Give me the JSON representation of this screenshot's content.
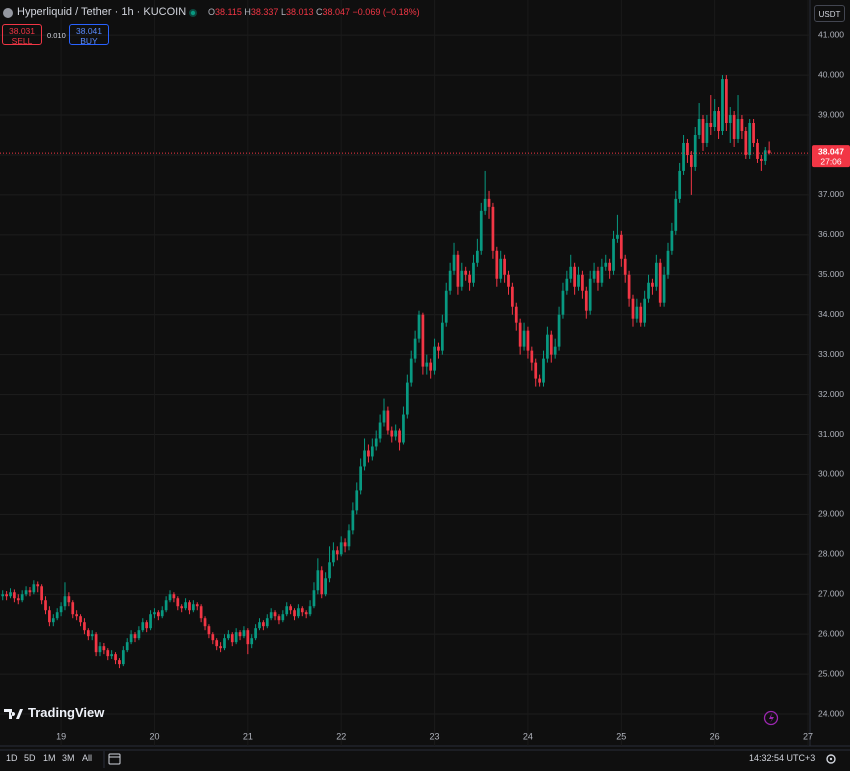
{
  "header": {
    "symbol": "Hyperliquid / Tether · 1h · KUCOIN",
    "ohlc": [
      {
        "key": "O",
        "value": "38.115"
      },
      {
        "key": "H",
        "value": "38.337"
      },
      {
        "key": "L",
        "value": "38.013"
      },
      {
        "key": "C",
        "value": "38.047"
      }
    ],
    "change": "−0.069 (−0.18%)"
  },
  "trade": {
    "sell_price": "38.031",
    "sell_label": "SELL",
    "spread": "0.010",
    "buy_price": "38.041",
    "buy_label": "BUY"
  },
  "currency": "USDT",
  "brand": "TradingView",
  "toolbar": {
    "ranges": [
      "1D",
      "5D",
      "1M",
      "3M",
      "All"
    ],
    "clock": "14:32:54 UTC+3"
  },
  "chart_data": {
    "type": "candlestick",
    "up_color": "#089981",
    "down_color": "#f23645",
    "grid": true,
    "xlim": [
      -0.7,
      207.5
    ],
    "xticks": [
      {
        "value": 15,
        "label": "19"
      },
      {
        "value": 39,
        "label": "20"
      },
      {
        "value": 63,
        "label": "21"
      },
      {
        "value": 87,
        "label": "22"
      },
      {
        "value": 111,
        "label": "23"
      },
      {
        "value": 135,
        "label": "24"
      },
      {
        "value": 159,
        "label": "25"
      },
      {
        "value": 183,
        "label": "26"
      },
      {
        "value": 207,
        "label": "27"
      }
    ],
    "ylim": [
      23.2,
      41.88
    ],
    "yticks": [
      {
        "value": 24,
        "label": "24.000"
      },
      {
        "value": 25,
        "label": "25.000"
      },
      {
        "value": 26,
        "label": "26.000"
      },
      {
        "value": 27,
        "label": "27.000"
      },
      {
        "value": 28,
        "label": "28.000"
      },
      {
        "value": 29,
        "label": "29.000"
      },
      {
        "value": 30,
        "label": "30.000"
      },
      {
        "value": 31,
        "label": "31.000"
      },
      {
        "value": 32,
        "label": "32.000"
      },
      {
        "value": 33,
        "label": "33.000"
      },
      {
        "value": 34,
        "label": "34.000"
      },
      {
        "value": 35,
        "label": "35.000"
      },
      {
        "value": 36,
        "label": "36.000"
      },
      {
        "value": 37,
        "label": "37.000"
      },
      {
        "value": 38,
        "label": "38.000"
      },
      {
        "value": 39,
        "label": "39.000"
      },
      {
        "value": 40,
        "label": "40.000"
      },
      {
        "value": 41,
        "label": "41.000"
      }
    ],
    "current_price": 38.047,
    "countdown": "27:06",
    "ohlc": [
      [
        26.95,
        27.1,
        26.85,
        27.0
      ],
      [
        27.0,
        27.08,
        26.85,
        26.95
      ],
      [
        26.95,
        27.15,
        26.9,
        27.05
      ],
      [
        27.05,
        27.12,
        26.8,
        26.9
      ],
      [
        26.9,
        27.0,
        26.75,
        26.85
      ],
      [
        26.85,
        27.1,
        26.8,
        27.0
      ],
      [
        27.0,
        27.2,
        26.95,
        27.1
      ],
      [
        27.1,
        27.18,
        26.95,
        27.05
      ],
      [
        27.05,
        27.35,
        27.0,
        27.25
      ],
      [
        27.25,
        27.32,
        27.05,
        27.2
      ],
      [
        27.2,
        27.25,
        26.75,
        26.85
      ],
      [
        26.85,
        26.95,
        26.5,
        26.6
      ],
      [
        26.6,
        26.7,
        26.2,
        26.3
      ],
      [
        26.3,
        26.5,
        26.2,
        26.4
      ],
      [
        26.4,
        26.65,
        26.35,
        26.55
      ],
      [
        26.55,
        26.8,
        26.45,
        26.7
      ],
      [
        26.7,
        27.3,
        26.6,
        26.95
      ],
      [
        26.95,
        27.05,
        26.7,
        26.8
      ],
      [
        26.8,
        26.85,
        26.4,
        26.5
      ],
      [
        26.5,
        26.6,
        26.35,
        26.45
      ],
      [
        26.45,
        26.5,
        26.2,
        26.3
      ],
      [
        26.3,
        26.4,
        26.0,
        26.1
      ],
      [
        26.1,
        26.15,
        25.85,
        25.95
      ],
      [
        25.95,
        26.1,
        25.85,
        26.0
      ],
      [
        26.0,
        26.05,
        25.45,
        25.55
      ],
      [
        25.55,
        25.8,
        25.45,
        25.7
      ],
      [
        25.7,
        25.78,
        25.5,
        25.6
      ],
      [
        25.6,
        25.65,
        25.35,
        25.45
      ],
      [
        25.45,
        25.6,
        25.38,
        25.5
      ],
      [
        25.5,
        25.55,
        25.25,
        25.35
      ],
      [
        25.35,
        25.4,
        25.15,
        25.25
      ],
      [
        25.25,
        25.7,
        25.2,
        25.6
      ],
      [
        25.6,
        25.9,
        25.55,
        25.8
      ],
      [
        25.8,
        26.1,
        25.75,
        26.0
      ],
      [
        26.0,
        26.05,
        25.8,
        25.9
      ],
      [
        25.9,
        26.2,
        25.85,
        26.1
      ],
      [
        26.1,
        26.4,
        26.05,
        26.3
      ],
      [
        26.3,
        26.35,
        26.05,
        26.15
      ],
      [
        26.15,
        26.6,
        26.1,
        26.5
      ],
      [
        26.5,
        26.65,
        26.4,
        26.55
      ],
      [
        26.55,
        26.6,
        26.35,
        26.45
      ],
      [
        26.45,
        26.7,
        26.4,
        26.6
      ],
      [
        26.6,
        26.95,
        26.55,
        26.85
      ],
      [
        26.85,
        27.1,
        26.8,
        27.0
      ],
      [
        27.0,
        27.05,
        26.8,
        26.9
      ],
      [
        26.9,
        26.95,
        26.6,
        26.7
      ],
      [
        26.7,
        26.75,
        26.55,
        26.65
      ],
      [
        26.65,
        26.9,
        26.6,
        26.8
      ],
      [
        26.8,
        26.85,
        26.5,
        26.6
      ],
      [
        26.6,
        26.85,
        26.55,
        26.75
      ],
      [
        26.75,
        26.8,
        26.6,
        26.7
      ],
      [
        26.7,
        26.75,
        26.3,
        26.4
      ],
      [
        26.4,
        26.45,
        26.1,
        26.2
      ],
      [
        26.2,
        26.25,
        25.9,
        26.0
      ],
      [
        26.0,
        26.05,
        25.75,
        25.85
      ],
      [
        25.85,
        25.9,
        25.6,
        25.7
      ],
      [
        25.7,
        25.8,
        25.55,
        25.65
      ],
      [
        25.65,
        26.0,
        25.6,
        25.9
      ],
      [
        25.9,
        26.1,
        25.85,
        26.0
      ],
      [
        26.0,
        26.05,
        25.7,
        25.8
      ],
      [
        25.8,
        26.15,
        25.75,
        26.05
      ],
      [
        26.05,
        26.1,
        25.85,
        25.95
      ],
      [
        25.95,
        26.2,
        25.9,
        26.1
      ],
      [
        26.1,
        26.15,
        25.5,
        25.75
      ],
      [
        25.75,
        26.0,
        25.65,
        25.9
      ],
      [
        25.9,
        26.25,
        25.85,
        26.15
      ],
      [
        26.15,
        26.4,
        26.1,
        26.3
      ],
      [
        26.3,
        26.35,
        26.1,
        26.2
      ],
      [
        26.2,
        26.5,
        26.15,
        26.4
      ],
      [
        26.4,
        26.65,
        26.35,
        26.55
      ],
      [
        26.55,
        26.6,
        26.35,
        26.45
      ],
      [
        26.45,
        26.5,
        26.25,
        26.35
      ],
      [
        26.35,
        26.6,
        26.3,
        26.5
      ],
      [
        26.5,
        26.8,
        26.45,
        26.7
      ],
      [
        26.7,
        26.75,
        26.5,
        26.6
      ],
      [
        26.6,
        26.65,
        26.35,
        26.45
      ],
      [
        26.45,
        26.75,
        26.4,
        26.65
      ],
      [
        26.65,
        26.7,
        26.45,
        26.55
      ],
      [
        26.55,
        26.6,
        26.4,
        26.5
      ],
      [
        26.5,
        26.85,
        26.45,
        26.7
      ],
      [
        26.7,
        27.3,
        26.65,
        27.1
      ],
      [
        27.1,
        27.9,
        27.0,
        27.6
      ],
      [
        27.6,
        27.7,
        26.9,
        27.0
      ],
      [
        27.0,
        27.55,
        26.95,
        27.4
      ],
      [
        27.4,
        28.2,
        27.3,
        27.8
      ],
      [
        27.8,
        28.3,
        27.7,
        28.1
      ],
      [
        28.1,
        28.2,
        27.85,
        28.0
      ],
      [
        28.0,
        28.45,
        27.95,
        28.3
      ],
      [
        28.3,
        28.4,
        28.05,
        28.2
      ],
      [
        28.2,
        28.75,
        28.1,
        28.6
      ],
      [
        28.6,
        29.3,
        28.5,
        29.1
      ],
      [
        29.1,
        29.8,
        29.0,
        29.6
      ],
      [
        29.6,
        30.4,
        29.5,
        30.2
      ],
      [
        30.2,
        30.9,
        30.1,
        30.6
      ],
      [
        30.6,
        30.75,
        30.3,
        30.45
      ],
      [
        30.45,
        30.9,
        30.35,
        30.7
      ],
      [
        30.7,
        31.1,
        30.6,
        30.9
      ],
      [
        30.9,
        31.5,
        30.8,
        31.3
      ],
      [
        31.3,
        31.9,
        31.2,
        31.6
      ],
      [
        31.6,
        31.7,
        31.0,
        31.1
      ],
      [
        31.1,
        31.2,
        30.8,
        30.95
      ],
      [
        30.95,
        31.25,
        30.85,
        31.1
      ],
      [
        31.1,
        31.15,
        30.6,
        30.8
      ],
      [
        30.8,
        31.7,
        30.75,
        31.5
      ],
      [
        31.5,
        32.5,
        31.4,
        32.3
      ],
      [
        32.3,
        33.1,
        32.2,
        32.9
      ],
      [
        32.9,
        33.6,
        32.8,
        33.4
      ],
      [
        33.4,
        34.1,
        33.3,
        34.0
      ],
      [
        34.0,
        34.05,
        32.5,
        32.7
      ],
      [
        32.7,
        33.0,
        32.5,
        32.8
      ],
      [
        32.8,
        32.9,
        32.4,
        32.6
      ],
      [
        32.6,
        33.4,
        32.5,
        33.2
      ],
      [
        33.2,
        33.3,
        32.9,
        33.1
      ],
      [
        33.1,
        34.0,
        33.0,
        33.8
      ],
      [
        33.8,
        34.8,
        33.7,
        34.6
      ],
      [
        34.6,
        35.3,
        34.5,
        35.1
      ],
      [
        35.1,
        35.8,
        35.0,
        35.5
      ],
      [
        35.5,
        35.6,
        34.5,
        34.7
      ],
      [
        34.7,
        35.3,
        34.6,
        35.1
      ],
      [
        35.1,
        35.2,
        34.85,
        35.0
      ],
      [
        35.0,
        35.1,
        34.6,
        34.8
      ],
      [
        34.8,
        35.5,
        34.7,
        35.3
      ],
      [
        35.3,
        35.9,
        35.2,
        35.6
      ],
      [
        35.6,
        36.8,
        35.5,
        36.6
      ],
      [
        36.6,
        37.6,
        36.5,
        36.9
      ],
      [
        36.9,
        37.1,
        36.4,
        36.7
      ],
      [
        36.7,
        36.8,
        35.4,
        35.6
      ],
      [
        35.6,
        35.7,
        34.7,
        34.9
      ],
      [
        34.9,
        35.6,
        34.8,
        35.4
      ],
      [
        35.4,
        35.5,
        34.8,
        35.0
      ],
      [
        35.0,
        35.1,
        34.5,
        34.7
      ],
      [
        34.7,
        34.8,
        34.0,
        34.2
      ],
      [
        34.2,
        34.3,
        33.6,
        33.8
      ],
      [
        33.8,
        33.9,
        33.0,
        33.2
      ],
      [
        33.2,
        33.8,
        33.1,
        33.6
      ],
      [
        33.6,
        33.7,
        32.9,
        33.1
      ],
      [
        33.1,
        33.2,
        32.6,
        32.8
      ],
      [
        32.8,
        32.9,
        32.2,
        32.4
      ],
      [
        32.4,
        32.5,
        32.2,
        32.3
      ],
      [
        32.3,
        33.1,
        32.2,
        32.9
      ],
      [
        32.9,
        33.7,
        32.8,
        33.5
      ],
      [
        33.5,
        33.6,
        32.8,
        33.0
      ],
      [
        33.0,
        33.4,
        32.9,
        33.2
      ],
      [
        33.2,
        34.2,
        33.1,
        34.0
      ],
      [
        34.0,
        34.8,
        33.9,
        34.6
      ],
      [
        34.6,
        35.1,
        34.5,
        34.9
      ],
      [
        34.9,
        35.5,
        34.8,
        35.2
      ],
      [
        35.2,
        35.3,
        34.5,
        34.7
      ],
      [
        34.7,
        35.2,
        34.6,
        35.0
      ],
      [
        35.0,
        35.1,
        34.4,
        34.6
      ],
      [
        34.6,
        34.7,
        33.9,
        34.1
      ],
      [
        34.1,
        35.1,
        34.0,
        34.9
      ],
      [
        34.9,
        35.3,
        34.8,
        35.1
      ],
      [
        35.1,
        35.2,
        34.6,
        34.8
      ],
      [
        34.8,
        35.4,
        34.7,
        35.2
      ],
      [
        35.2,
        35.5,
        35.1,
        35.3
      ],
      [
        35.3,
        35.4,
        34.9,
        35.1
      ],
      [
        35.1,
        36.1,
        35.0,
        35.9
      ],
      [
        35.9,
        36.5,
        35.8,
        36.0
      ],
      [
        36.0,
        36.1,
        35.2,
        35.4
      ],
      [
        35.4,
        35.5,
        34.8,
        35.0
      ],
      [
        35.0,
        35.1,
        34.2,
        34.4
      ],
      [
        34.4,
        34.5,
        33.7,
        33.9
      ],
      [
        33.9,
        34.4,
        33.8,
        34.2
      ],
      [
        34.2,
        34.3,
        33.7,
        33.8
      ],
      [
        33.8,
        34.6,
        33.7,
        34.4
      ],
      [
        34.4,
        35.0,
        34.3,
        34.8
      ],
      [
        34.8,
        34.9,
        34.5,
        34.7
      ],
      [
        34.7,
        35.5,
        34.6,
        35.3
      ],
      [
        35.3,
        35.4,
        34.2,
        34.3
      ],
      [
        34.3,
        35.2,
        34.2,
        35.0
      ],
      [
        35.0,
        35.8,
        34.9,
        35.6
      ],
      [
        35.6,
        36.3,
        35.5,
        36.1
      ],
      [
        36.1,
        37.1,
        36.0,
        36.9
      ],
      [
        36.9,
        37.8,
        36.8,
        37.6
      ],
      [
        37.6,
        38.5,
        37.5,
        38.3
      ],
      [
        38.3,
        38.4,
        37.8,
        38.0
      ],
      [
        38.0,
        38.1,
        37.0,
        37.7
      ],
      [
        37.7,
        38.7,
        37.6,
        38.5
      ],
      [
        38.5,
        39.3,
        38.4,
        38.9
      ],
      [
        38.9,
        39.0,
        38.1,
        38.3
      ],
      [
        38.3,
        39.0,
        38.2,
        38.8
      ],
      [
        38.8,
        39.5,
        38.5,
        38.7
      ],
      [
        38.7,
        39.4,
        38.6,
        39.1
      ],
      [
        39.1,
        39.2,
        38.4,
        38.6
      ],
      [
        38.6,
        40.0,
        38.5,
        39.9
      ],
      [
        39.9,
        40.0,
        38.6,
        38.8
      ],
      [
        38.8,
        39.2,
        38.3,
        39.0
      ],
      [
        39.0,
        39.1,
        38.2,
        38.4
      ],
      [
        38.4,
        39.5,
        38.3,
        38.9
      ],
      [
        38.9,
        39.0,
        38.4,
        38.6
      ],
      [
        38.6,
        38.7,
        37.9,
        38.0
      ],
      [
        38.0,
        38.9,
        37.9,
        38.8
      ],
      [
        38.8,
        38.9,
        38.2,
        38.3
      ],
      [
        38.3,
        38.4,
        37.8,
        37.9
      ],
      [
        37.9,
        38.0,
        37.6,
        37.85
      ],
      [
        37.85,
        38.2,
        37.75,
        38.115
      ],
      [
        38.115,
        38.337,
        38.013,
        38.047
      ]
    ]
  }
}
